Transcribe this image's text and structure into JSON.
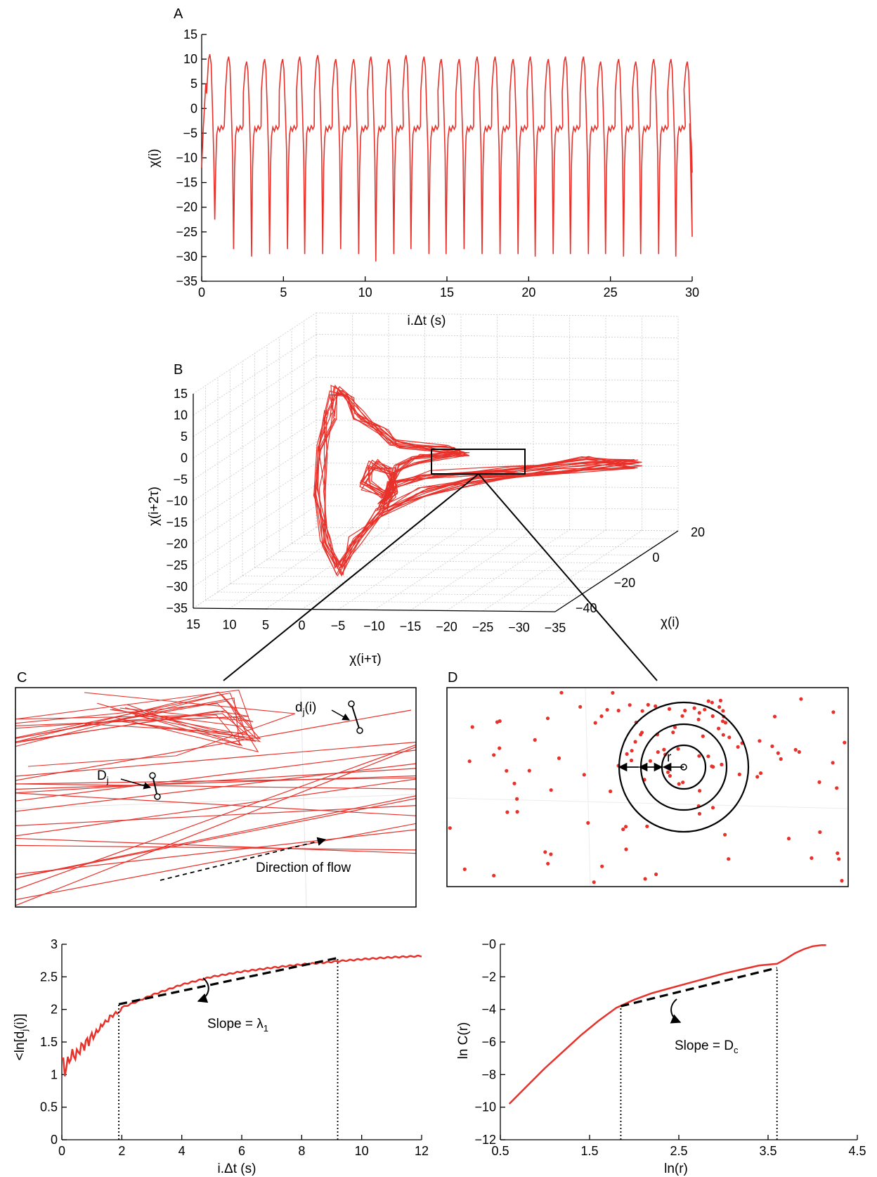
{
  "panels": {
    "A": "A",
    "B": "B",
    "C": "C",
    "D": "D"
  },
  "colors": {
    "trace": "#e8312a",
    "axis": "#000000"
  },
  "chart_data": [
    {
      "panel": "A",
      "type": "line",
      "xlabel": "i.Δt (s)",
      "ylabel": "χ(i)",
      "xlim": [
        0,
        30
      ],
      "ylim": [
        -35,
        15
      ],
      "xticks": [
        0,
        5,
        10,
        15,
        20,
        25,
        30
      ],
      "yticks": [
        15,
        10,
        5,
        0,
        -5,
        -10,
        -15,
        -20,
        -25,
        -30,
        -35
      ],
      "ytick_labels": [
        "15",
        "10",
        "5",
        "0",
        "−5",
        "−10",
        "−15",
        "−20",
        "−25",
        "−30",
        "−35"
      ],
      "beat_times": [
        0.5,
        1.65,
        2.75,
        3.85,
        4.95,
        6.0,
        7.1,
        8.2,
        9.3,
        10.35,
        11.45,
        12.5,
        13.6,
        14.65,
        15.75,
        16.85,
        17.95,
        19.05,
        20.1,
        21.2,
        22.25,
        23.35,
        24.4,
        25.5,
        26.55,
        27.65,
        28.7,
        29.7
      ],
      "beat_peaks": [
        11,
        10.5,
        9.5,
        10,
        10,
        10.5,
        10.8,
        10,
        10,
        10.5,
        10,
        10.8,
        10.5,
        10,
        10,
        10.5,
        10.5,
        10,
        10.5,
        10,
        10.5,
        10.5,
        9.5,
        10,
        9.5,
        10,
        10,
        9.5
      ],
      "beat_minima": [
        -22.5,
        -28.5,
        -30,
        -29.5,
        -28.5,
        -29.5,
        -29.5,
        -28.5,
        -29.5,
        -31,
        -29.5,
        -28.5,
        -29.5,
        -29.5,
        -28.5,
        -29.5,
        -29.5,
        -29.5,
        -30,
        -29.5,
        -29.5,
        -29.5,
        -29.5,
        -30,
        -29.5,
        -29.5,
        -30,
        -26
      ]
    },
    {
      "panel": "B",
      "type": "line",
      "xlabel": "χ(i+τ)",
      "ylabel": "χ(i+2τ)",
      "zlabel": "χ(i)",
      "vert_ticks": [
        "15",
        "10",
        "5",
        "0",
        "−5",
        "−10",
        "−15",
        "−20",
        "−25",
        "−30",
        "−35"
      ],
      "front_ticks": [
        "15",
        "10",
        "5",
        "0",
        "−5",
        "−10",
        "−15",
        "−20",
        "−25",
        "−30",
        "−35"
      ],
      "depth_ticks": [
        "20",
        "0",
        "−20",
        "−40"
      ]
    },
    {
      "panel": "C",
      "type": "line",
      "labels": {
        "d": "d",
        "d_sub": "j",
        "d_suffix": "(i)",
        "D": "D",
        "D_sub": "j",
        "flow": "Direction of flow"
      }
    },
    {
      "panel": "D",
      "type": "scatter",
      "labels": {
        "r": "r"
      }
    },
    {
      "panel": "E",
      "type": "line",
      "xlabel": "i.Δt (s)",
      "ylabel_prefix": "<ln[d",
      "ylabel_sub": "j",
      "ylabel_suffix": "(i)]",
      "xlim": [
        0,
        12
      ],
      "ylim": [
        0,
        3
      ],
      "xticks": [
        0,
        2,
        4,
        6,
        8,
        10,
        12
      ],
      "yticks": [
        0,
        0.5,
        1,
        1.5,
        2,
        2.5,
        3
      ],
      "ytick_labels": [
        "0",
        "0.5",
        "1",
        "1.5",
        "2",
        "2.5",
        "3"
      ],
      "x": [
        0,
        0.1,
        0.2,
        0.3,
        0.5,
        0.8,
        1.0,
        1.3,
        1.6,
        1.9,
        2.0,
        2.5,
        3,
        3.5,
        4,
        5,
        6,
        7,
        8,
        9,
        9.2,
        10,
        11,
        12
      ],
      "y": [
        1.25,
        1.1,
        1.2,
        1.3,
        1.35,
        1.5,
        1.6,
        1.75,
        1.9,
        2.0,
        2.03,
        2.12,
        2.22,
        2.3,
        2.38,
        2.5,
        2.58,
        2.64,
        2.69,
        2.73,
        2.74,
        2.77,
        2.8,
        2.82
      ],
      "fit_x": [
        1.9,
        9.2
      ],
      "fit_y": [
        2.08,
        2.79
      ],
      "slope_prefix": "Slope = λ",
      "slope_sub": "1"
    },
    {
      "panel": "F",
      "type": "line",
      "xlabel": "ln(r)",
      "ylabel": "ln C(r)",
      "xlim": [
        0.5,
        4.5
      ],
      "ylim": [
        -12,
        0
      ],
      "xticks": [
        0.5,
        1.5,
        2.5,
        3.5,
        4.5
      ],
      "xtick_labels": [
        "0.5",
        "1.5",
        "2.5",
        "3.5",
        "4.5"
      ],
      "yticks": [
        0,
        -2,
        -4,
        -6,
        -8,
        -10,
        -12
      ],
      "ytick_labels": [
        "−0",
        "−2",
        "−4",
        "−6",
        "−8",
        "−10",
        "−12"
      ],
      "x": [
        0.6,
        0.8,
        1.0,
        1.2,
        1.4,
        1.6,
        1.8,
        2.0,
        2.2,
        2.4,
        2.6,
        2.8,
        3.0,
        3.2,
        3.4,
        3.6,
        3.7,
        3.8,
        3.9,
        4.0,
        4.1,
        4.15
      ],
      "y": [
        -9.8,
        -8.7,
        -7.6,
        -6.6,
        -5.6,
        -4.7,
        -3.9,
        -3.4,
        -3.0,
        -2.7,
        -2.4,
        -2.1,
        -1.8,
        -1.55,
        -1.3,
        -1.2,
        -0.9,
        -0.55,
        -0.3,
        -0.12,
        -0.05,
        -0.05
      ],
      "fit_x": [
        1.85,
        3.6
      ],
      "fit_y": [
        -3.8,
        -1.45
      ],
      "slope_prefix": "Slope = D",
      "slope_sub": "c"
    }
  ]
}
